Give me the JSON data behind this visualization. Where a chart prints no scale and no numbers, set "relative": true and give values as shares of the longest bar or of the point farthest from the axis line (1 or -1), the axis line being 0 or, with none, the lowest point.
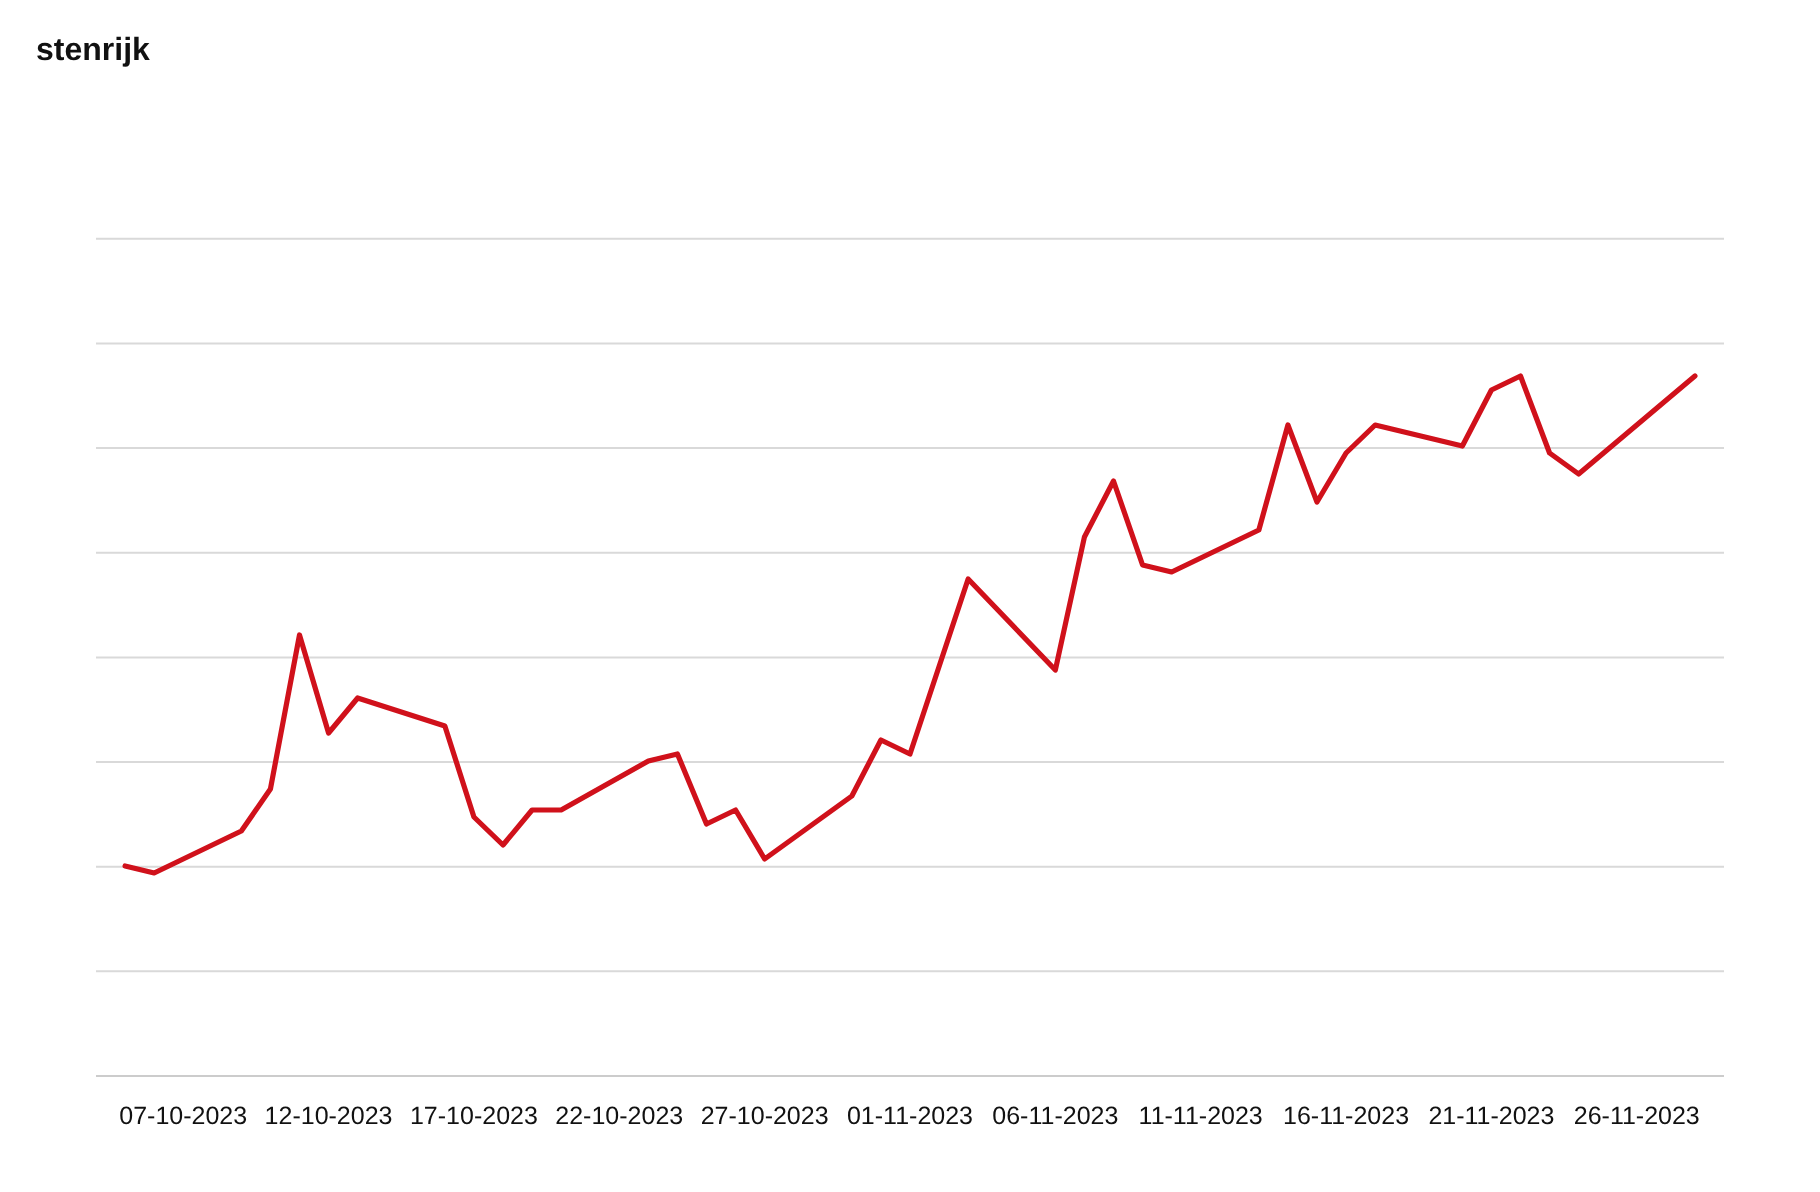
{
  "chart_data": {
    "type": "line",
    "title": "stenrijk",
    "relative": true,
    "grid": "y",
    "marker": "none",
    "line_style": "solid",
    "x": [
      "2023-10-05",
      "2023-10-06",
      "2023-10-09",
      "2023-10-10",
      "2023-10-11",
      "2023-10-12",
      "2023-10-13",
      "2023-10-16",
      "2023-10-17",
      "2023-10-18",
      "2023-10-19",
      "2023-10-20",
      "2023-10-23",
      "2023-10-24",
      "2023-10-25",
      "2023-10-26",
      "2023-10-27",
      "2023-10-30",
      "2023-10-31",
      "2023-11-01",
      "2023-11-03",
      "2023-11-06",
      "2023-11-07",
      "2023-11-08",
      "2023-11-09",
      "2023-11-10",
      "2023-11-13",
      "2023-11-14",
      "2023-11-15",
      "2023-11-16",
      "2023-11-17",
      "2023-11-20",
      "2023-11-21",
      "2023-11-22",
      "2023-11-23",
      "2023-11-24",
      "2023-11-28"
    ],
    "series": [
      {
        "color": "#d0111b",
        "values": [
          0.3,
          0.29,
          0.35,
          0.41,
          0.63,
          0.49,
          0.54,
          0.5,
          0.37,
          0.33,
          0.38,
          0.38,
          0.45,
          0.46,
          0.36,
          0.38,
          0.31,
          0.4,
          0.48,
          0.46,
          0.71,
          0.58,
          0.77,
          0.85,
          0.73,
          0.72,
          0.78,
          0.93,
          0.82,
          0.89,
          0.93,
          0.9,
          0.98,
          1.0,
          0.89,
          0.86,
          1.0
        ]
      }
    ],
    "xlim": [
      "2023-10-04",
      "2023-11-29"
    ],
    "xticks": [
      {
        "value": "2023-10-07",
        "label": "07-10-2023"
      },
      {
        "value": "2023-10-12",
        "label": "12-10-2023"
      },
      {
        "value": "2023-10-17",
        "label": "17-10-2023"
      },
      {
        "value": "2023-10-22",
        "label": "22-10-2023"
      },
      {
        "value": "2023-10-27",
        "label": "27-10-2023"
      },
      {
        "value": "2023-11-01",
        "label": "01-11-2023"
      },
      {
        "value": "2023-11-06",
        "label": "06-11-2023"
      },
      {
        "value": "2023-11-11",
        "label": "11-11-2023"
      },
      {
        "value": "2023-11-16",
        "label": "16-11-2023"
      },
      {
        "value": "2023-11-21",
        "label": "21-11-2023"
      },
      {
        "value": "2023-11-26",
        "label": "26-11-2023"
      }
    ]
  }
}
